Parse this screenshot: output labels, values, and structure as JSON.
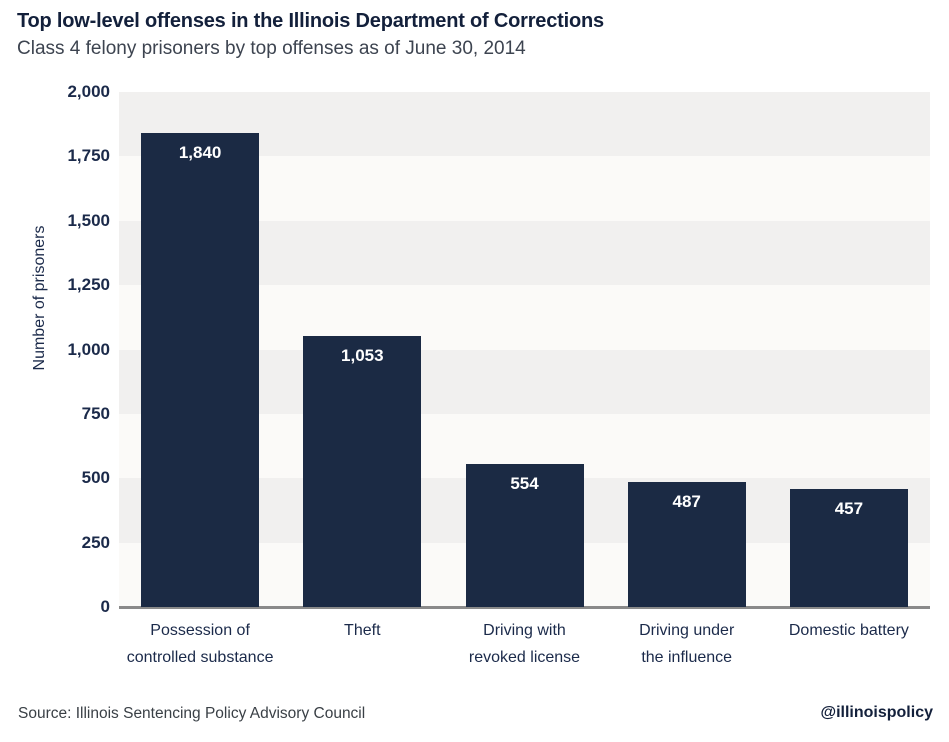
{
  "header": {
    "title": "Top low-level offenses in the Illinois Department of Corrections",
    "subtitle": "Class 4 felony prisoners by top offenses as of June 30, 2014"
  },
  "footer": {
    "source": "Source: Illinois Sentencing Policy Advisory Council",
    "handle": "@illinoispolicy"
  },
  "chart_data": {
    "type": "bar",
    "title": "Top low-level offenses in the Illinois Department of Corrections",
    "subtitle": "Class 4 felony prisoners by top offenses as of June 30, 2014",
    "xlabel": "",
    "ylabel": "Number of prisoners",
    "categories": [
      "Possession of\ncontrolled substance",
      "Theft",
      "Driving with\nrevoked license",
      "Driving under\nthe influence",
      "Domestic battery"
    ],
    "values": [
      1840,
      1053,
      554,
      487,
      457
    ],
    "value_labels": [
      "1,840",
      "1,053",
      "554",
      "487",
      "457"
    ],
    "ylim": [
      0,
      2000
    ],
    "yticks": [
      0,
      250,
      500,
      750,
      1000,
      1250,
      1500,
      1750,
      2000
    ],
    "ytick_labels": [
      "0",
      "250",
      "500",
      "750",
      "1,000",
      "1,250",
      "1,500",
      "1,750",
      "2,000"
    ],
    "legend": false,
    "grid": "alternating horizontal bands every 250 units, gray band at top (1750-2000)",
    "colors": {
      "bar": "#1b2a44",
      "band_dark": "#f1f0ef",
      "band_light": "#fbfaf8",
      "axis_line": "#8a8a8a",
      "value_label": "#ffffff",
      "tick_text": "#1b2a4a",
      "title_text": "#13203b",
      "subtitle_text": "#3d4450"
    }
  }
}
